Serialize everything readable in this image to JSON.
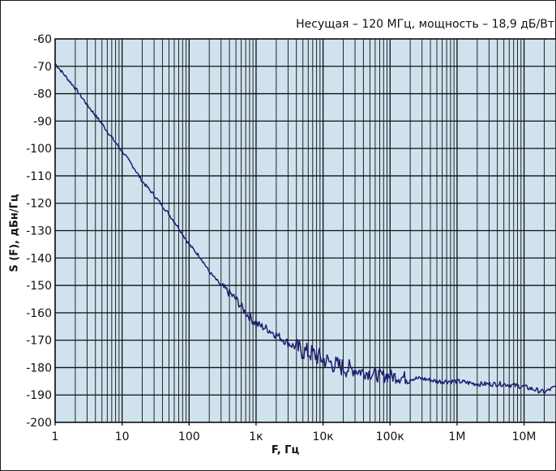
{
  "chart_data": {
    "type": "line",
    "annotation": "Несущая – 120 МГц, мощность – 18,9 дБ/Вт",
    "xlabel": "F, Гц",
    "ylabel": "S (F), дБн/Гц",
    "x_scale": "log",
    "xlim": [
      1,
      30000000
    ],
    "ylim": [
      -200,
      -60
    ],
    "x_ticks": [
      {
        "value": 1,
        "label": "1"
      },
      {
        "value": 10,
        "label": "10"
      },
      {
        "value": 100,
        "label": "100"
      },
      {
        "value": 1000,
        "label": "1к"
      },
      {
        "value": 10000,
        "label": "10к"
      },
      {
        "value": 100000,
        "label": "100к"
      },
      {
        "value": 1000000,
        "label": "1М"
      },
      {
        "value": 10000000,
        "label": "10М"
      }
    ],
    "y_ticks": [
      "-60",
      "-70",
      "-80",
      "-90",
      "-100",
      "-110",
      "-120",
      "-130",
      "-140",
      "-150",
      "-160",
      "-170",
      "-180",
      "-190",
      "-200"
    ],
    "grid": true,
    "colors": {
      "plot_bg": "#cfe2ee",
      "grid": "#111111",
      "line": "#1f1d6e"
    },
    "series": [
      {
        "x": [
          1,
          2,
          3,
          5,
          7,
          10,
          15,
          20,
          30,
          50,
          70,
          100,
          150,
          200,
          300,
          500,
          700,
          1000,
          1500,
          2000,
          3000,
          5000,
          7000,
          10000,
          15000,
          20000,
          30000,
          50000,
          70000,
          100000,
          200000,
          300000,
          500000,
          1000000,
          2000000,
          5000000,
          10000000,
          20000000,
          30000000
        ],
        "y": [
          -69,
          -78,
          -84,
          -91,
          -96,
          -101,
          -107,
          -112,
          -117,
          -124,
          -129,
          -135,
          -140,
          -145,
          -150,
          -155,
          -160,
          -164,
          -166,
          -168,
          -171,
          -174,
          -175,
          -177,
          -179,
          -180,
          -181,
          -182,
          -183,
          -183,
          -184,
          -184,
          -185,
          -185,
          -186,
          -186,
          -187,
          -189,
          -187
        ]
      }
    ]
  }
}
